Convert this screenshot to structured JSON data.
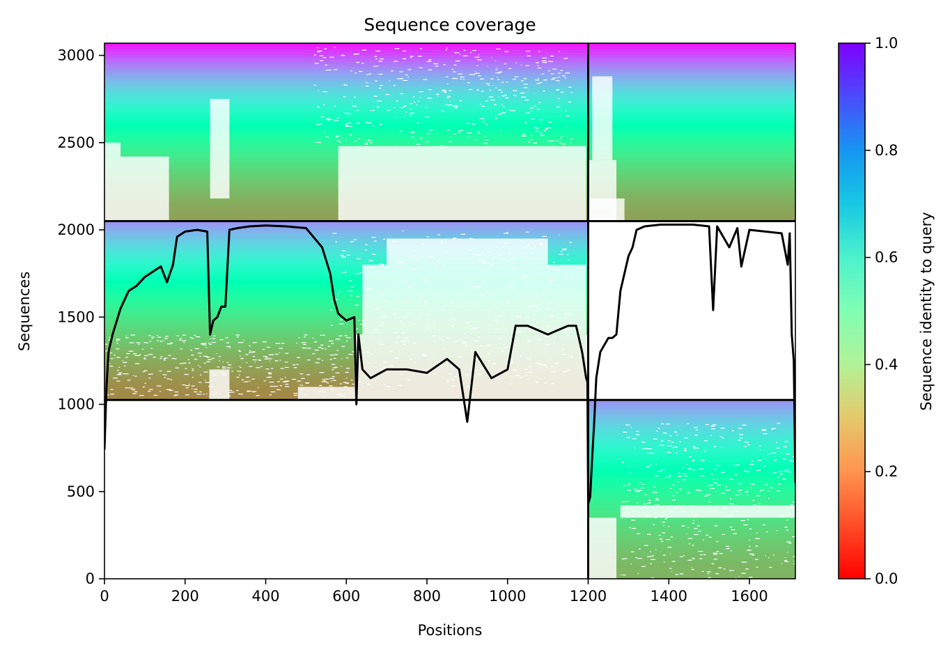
{
  "chart_data": {
    "type": "heatmap",
    "title": "Sequence coverage",
    "xlabel": "Positions",
    "ylabel": "Sequences",
    "xlim": [
      0,
      1714
    ],
    "ylim": [
      0,
      3070
    ],
    "xticks": [
      0,
      200,
      400,
      600,
      800,
      1000,
      1200,
      1400,
      1600
    ],
    "yticks": [
      0,
      500,
      1000,
      1500,
      2000,
      2500,
      3000
    ],
    "colorbar": {
      "label": "Sequence identity to query",
      "range": [
        0.0,
        1.0
      ],
      "ticks": [
        "0.0",
        "0.2",
        "0.4",
        "0.6",
        "0.8",
        "1.0"
      ],
      "colormap": "rainbow_r"
    },
    "chain_breaks": {
      "positions": [
        1200
      ],
      "sequences": [
        1025,
        2050
      ]
    },
    "blocks": [
      {
        "name": "pair-band",
        "x": [
          0,
          1200
        ],
        "y": [
          2050,
          3070
        ],
        "identity_top": 0.97,
        "identity_bottom": 0.22
      },
      {
        "name": "pair-band",
        "x": [
          1200,
          1714
        ],
        "y": [
          2050,
          3070
        ],
        "identity_top": 0.97,
        "identity_bottom": 0.22
      },
      {
        "name": "chain-a-msa",
        "x": [
          0,
          1200
        ],
        "y": [
          1025,
          2050
        ],
        "identity_top": 0.8,
        "identity_bottom": 0.18
      },
      {
        "name": "chain-b-msa",
        "x": [
          1200,
          1714
        ],
        "y": [
          0,
          1025
        ],
        "identity_top": 0.8,
        "identity_bottom": 0.25
      }
    ],
    "coverage_series": {
      "name": "coverage",
      "x": [
        0,
        5,
        10,
        20,
        40,
        60,
        80,
        100,
        120,
        140,
        155,
        170,
        180,
        200,
        230,
        255,
        262,
        270,
        280,
        290,
        300,
        310,
        330,
        360,
        400,
        450,
        500,
        540,
        560,
        570,
        580,
        600,
        620,
        625,
        630,
        640,
        660,
        700,
        750,
        800,
        850,
        880,
        900,
        920,
        960,
        1000,
        1020,
        1050,
        1100,
        1150,
        1170,
        1185,
        1195,
        1198,
        1200,
        1205,
        1210,
        1215,
        1220,
        1230,
        1250,
        1260,
        1270,
        1280,
        1290,
        1300,
        1310,
        1320,
        1340,
        1360,
        1380,
        1420,
        1460,
        1480,
        1500,
        1510,
        1520,
        1550,
        1570,
        1580,
        1600,
        1640,
        1680,
        1695,
        1700,
        1705,
        1710,
        1714
      ],
      "y": [
        740,
        1100,
        1300,
        1400,
        1550,
        1650,
        1680,
        1730,
        1760,
        1790,
        1700,
        1800,
        1960,
        1990,
        2000,
        1990,
        1400,
        1480,
        1500,
        1560,
        1560,
        2000,
        2010,
        2020,
        2025,
        2020,
        2010,
        1900,
        1750,
        1600,
        1520,
        1480,
        1500,
        1000,
        1400,
        1200,
        1150,
        1200,
        1200,
        1180,
        1260,
        1200,
        900,
        1300,
        1150,
        1200,
        1450,
        1450,
        1400,
        1450,
        1450,
        1300,
        1150,
        1130,
        430,
        470,
        700,
        900,
        1150,
        1300,
        1380,
        1380,
        1400,
        1650,
        1750,
        1850,
        1900,
        2000,
        2020,
        2025,
        2030,
        2030,
        2030,
        2025,
        2020,
        1540,
        2020,
        1900,
        2010,
        1790,
        2000,
        1990,
        1980,
        1800,
        1980,
        1400,
        1250,
        550
      ]
    }
  }
}
